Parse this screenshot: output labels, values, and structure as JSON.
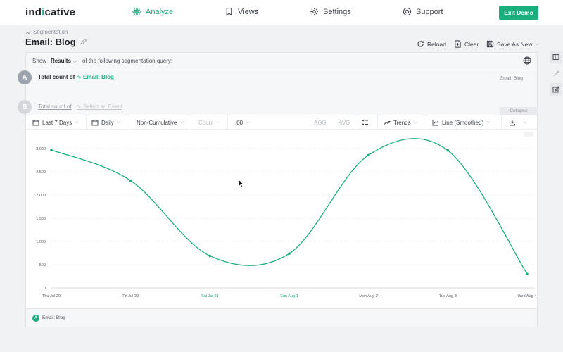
{
  "app": {
    "logo": {
      "pre": "ind",
      "dot": "i",
      "post": "cative"
    },
    "nav": [
      {
        "label": "Analyze",
        "icon": "atom-icon",
        "active": true
      },
      {
        "label": "Views",
        "icon": "bookmark-icon",
        "active": false
      },
      {
        "label": "Settings",
        "icon": "gear-icon",
        "active": false
      },
      {
        "label": "Support",
        "icon": "lifebuoy-icon",
        "active": false
      }
    ],
    "exit_label": "Exit Demo",
    "accent": "#1aae7c"
  },
  "header": {
    "breadcrumb": "Segmentation",
    "title": "Email: Blog",
    "actions": {
      "reload": "Reload",
      "clear": "Clear",
      "save": "Save As New"
    }
  },
  "query": {
    "show_label": "Show",
    "show_value": "Results",
    "show_tail": "of the following segmentation query:",
    "rows": [
      {
        "badge": "A",
        "text": "Total count of",
        "event": "Email: Blog",
        "right": "Email: Blog",
        "disabled": false
      },
      {
        "badge": "B",
        "text": "Total count of",
        "event": "Select an Event",
        "right": "",
        "disabled": true
      }
    ],
    "collapse_label": "Collapse"
  },
  "toolbar": {
    "range": "Last 7 Days",
    "interval": "Daily",
    "mode": "Non-Cumulative",
    "measure": "Count",
    "decimals": ".00",
    "agg": "AGG",
    "avg": "AVG",
    "trends": "Trends",
    "chart_type": "Line (Smoothed)"
  },
  "chart_data": {
    "type": "line",
    "categories": [
      "Thu Jul-29",
      "Fri Jul-30",
      "Sat Jul-31",
      "Sun Aug-1",
      "Mon Aug-2",
      "Tue Aug-3",
      "Wed Aug-4"
    ],
    "weekend": [
      false,
      false,
      true,
      true,
      false,
      false,
      false
    ],
    "series": [
      {
        "name": "Email: Blog",
        "values": [
          2970,
          2310,
          690,
          740,
          2860,
          2960,
          300
        ]
      }
    ],
    "ylim": [
      0,
      3000
    ],
    "yticks": [
      0,
      500,
      1000,
      1500,
      2000,
      2500,
      3000
    ],
    "ytick_labels": [
      "0",
      "500",
      "1,000",
      "1,500",
      "2,000",
      "2,500",
      "3,000"
    ],
    "grid": true,
    "line_color": "#1aae7c",
    "weekend_color": "#1aae7c",
    "axis_text_color": "#555a61"
  },
  "legend": {
    "badge": "A",
    "label": "Email: Blog"
  }
}
